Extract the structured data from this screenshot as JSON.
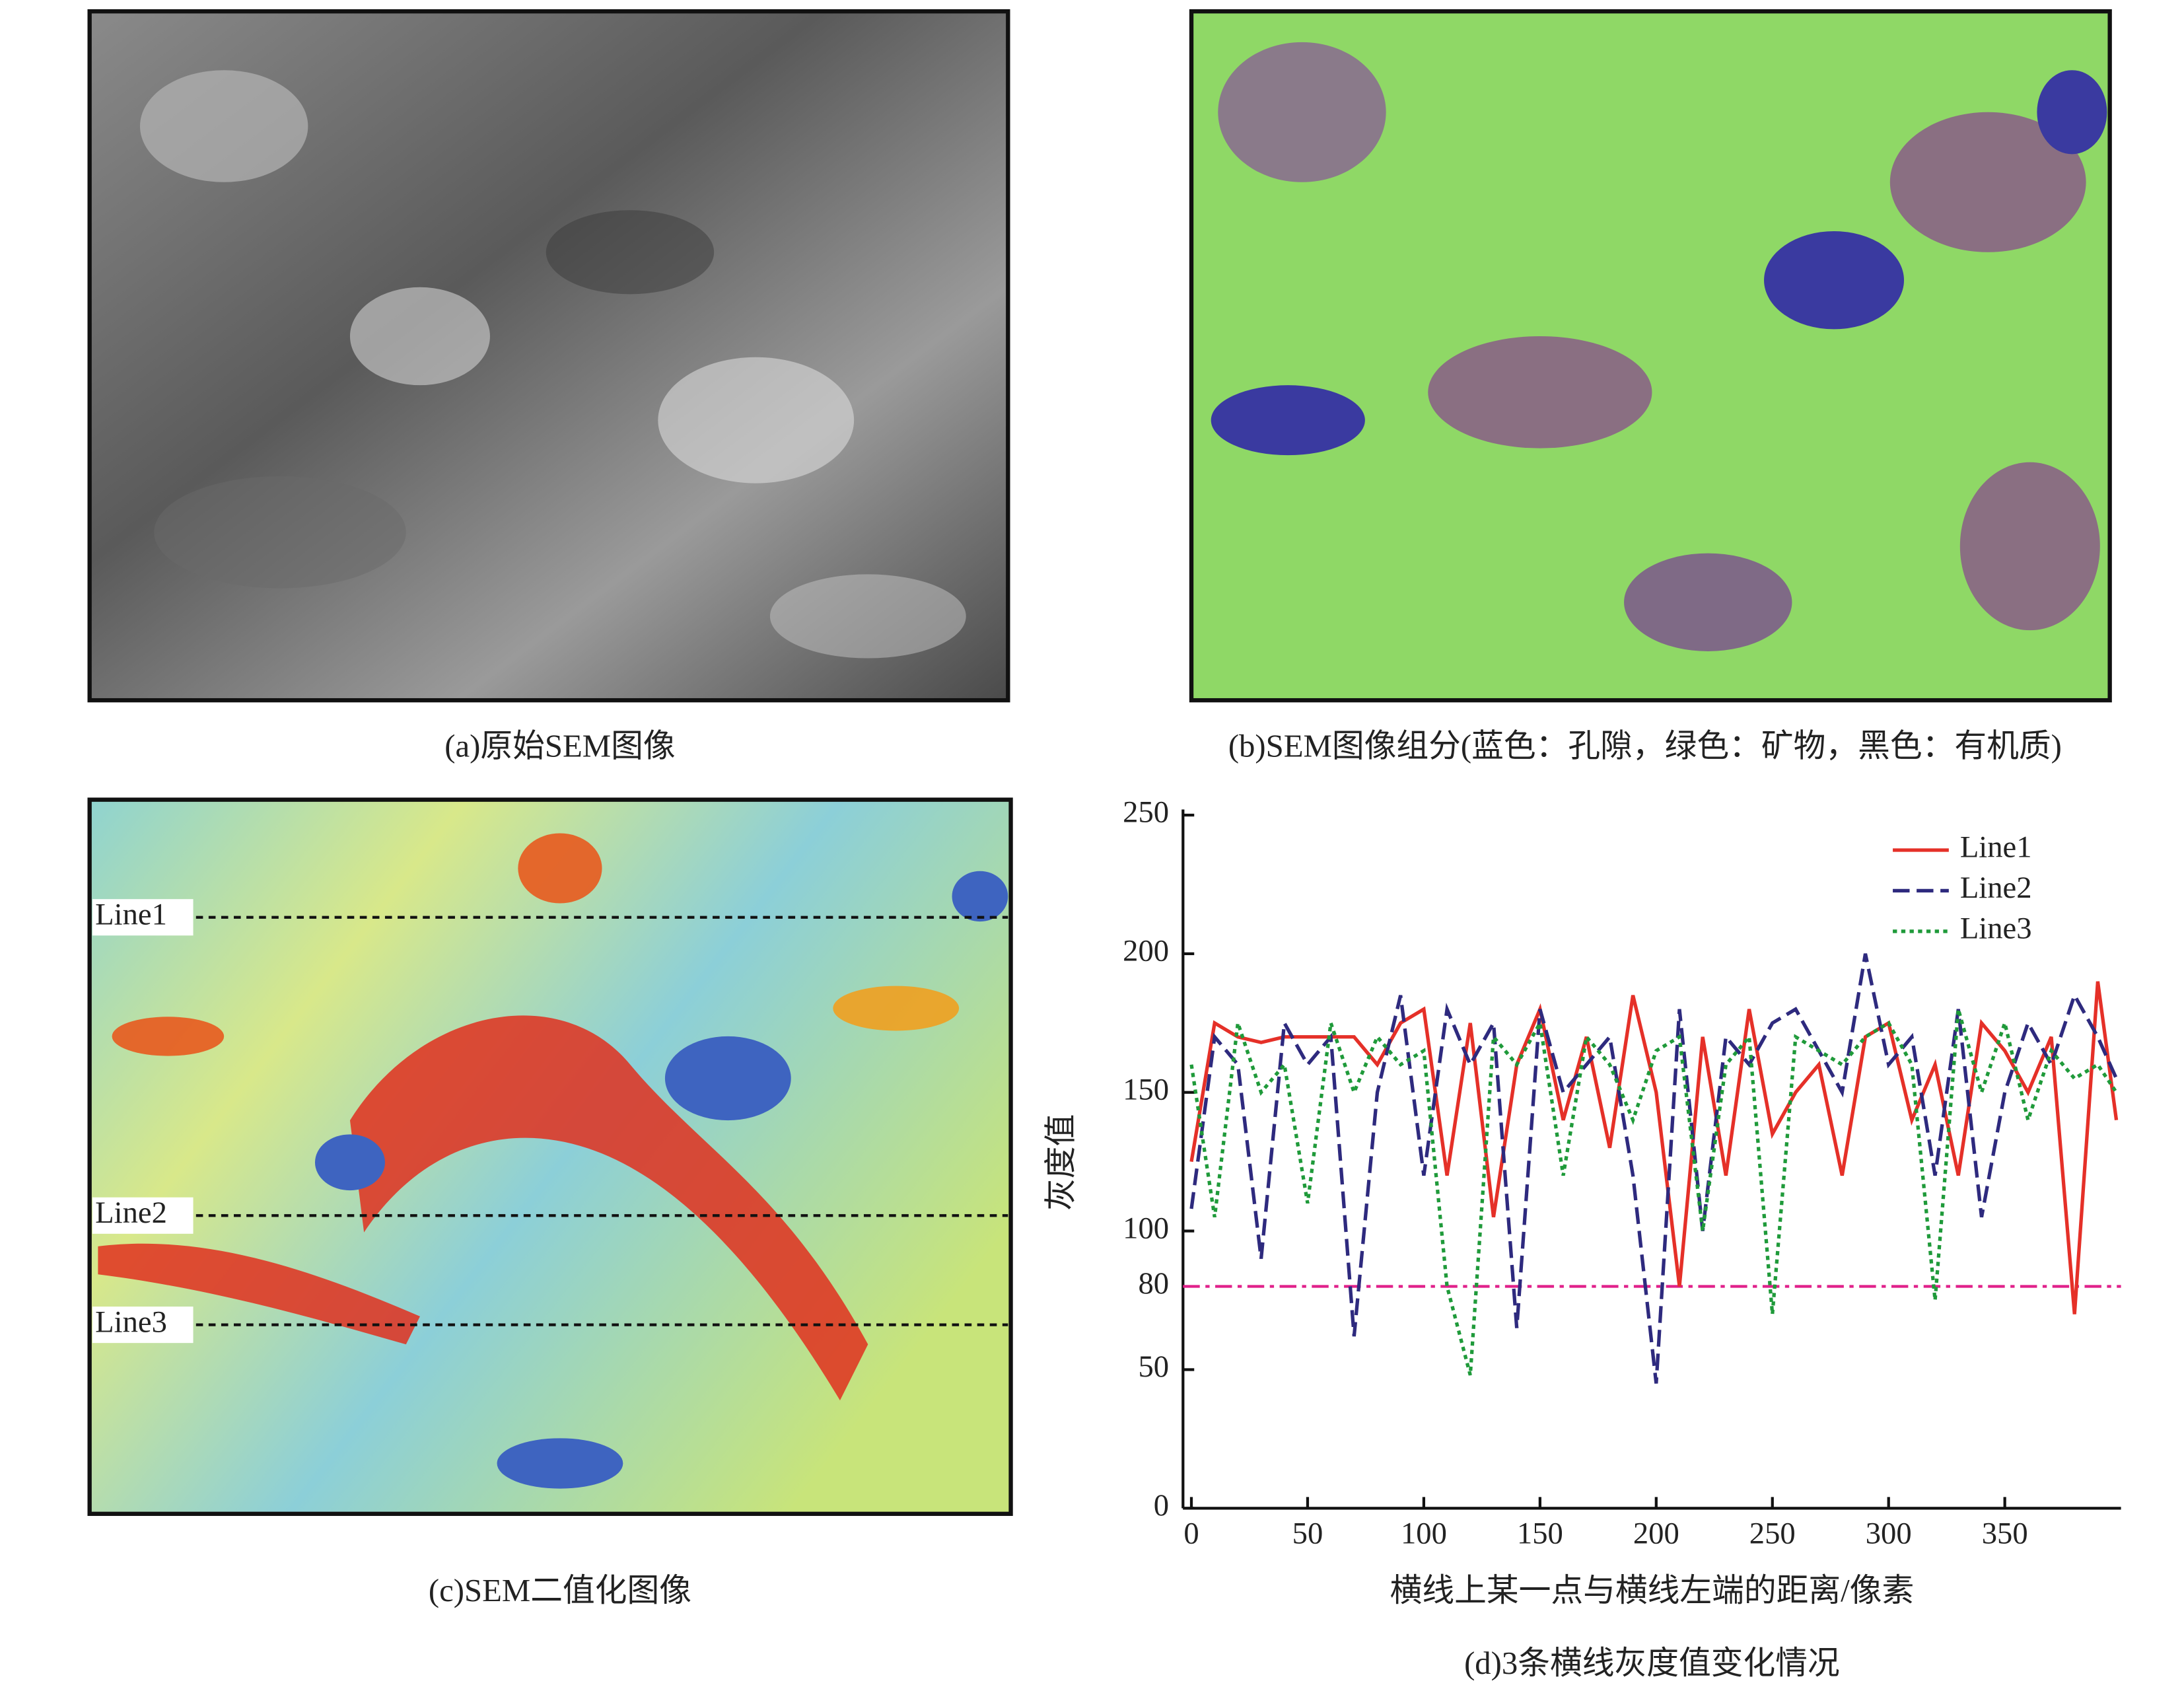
{
  "panels": [
    {
      "caption": "(a)原始SEM图像"
    },
    {
      "caption": "(b)SEM图像组分(蓝色：孔隙，绿色：矿物，黑色：有机质)"
    },
    {
      "caption": "(c)SEM二值化图像",
      "line_labels": [
        "Line1",
        "Line2",
        "Line3"
      ]
    }
  ],
  "chart_data": {
    "type": "line",
    "title": "(d)3条横线灰度值变化情况",
    "x_label": "横线上某一点与横线左端的距离/像素",
    "y_label": "灰度值",
    "x": [
      0,
      10,
      20,
      30,
      40,
      50,
      60,
      70,
      80,
      90,
      100,
      110,
      120,
      130,
      140,
      150,
      160,
      170,
      180,
      190,
      200,
      210,
      220,
      230,
      240,
      250,
      260,
      270,
      280,
      290,
      300,
      310,
      320,
      330,
      340,
      350,
      360,
      370,
      380,
      390,
      398
    ],
    "series": [
      {
        "name": "Line1",
        "color": "#e53028",
        "style": "solid",
        "values": [
          125,
          175,
          170,
          168,
          170,
          170,
          170,
          170,
          160,
          175,
          180,
          120,
          175,
          105,
          160,
          180,
          140,
          170,
          130,
          185,
          150,
          80,
          170,
          120,
          180,
          135,
          150,
          160,
          120,
          170,
          175,
          140,
          160,
          120,
          175,
          165,
          150,
          170,
          70,
          190,
          140
        ]
      },
      {
        "name": "Line2",
        "color": "#2e2a7e",
        "style": "dashed",
        "values": [
          108,
          170,
          160,
          90,
          175,
          160,
          170,
          62,
          150,
          185,
          120,
          180,
          160,
          175,
          65,
          180,
          150,
          160,
          170,
          120,
          45,
          180,
          100,
          170,
          160,
          175,
          180,
          165,
          150,
          200,
          160,
          170,
          120,
          180,
          105,
          150,
          175,
          160,
          185,
          170,
          155
        ]
      },
      {
        "name": "Line3",
        "color": "#1f9a3a",
        "style": "dotted",
        "values": [
          160,
          105,
          175,
          150,
          160,
          110,
          175,
          150,
          170,
          160,
          165,
          80,
          48,
          170,
          160,
          175,
          120,
          170,
          160,
          140,
          165,
          170,
          100,
          160,
          170,
          70,
          170,
          165,
          160,
          170,
          175,
          160,
          75,
          180,
          150,
          175,
          140,
          165,
          155,
          160,
          150
        ]
      }
    ],
    "threshold": {
      "value": 80,
      "color": "#e0208a"
    },
    "xlim": [
      0,
      400
    ],
    "xticks": [
      0,
      50,
      100,
      150,
      200,
      250,
      300,
      350
    ],
    "ylim": [
      0,
      250
    ],
    "yticks": [
      0,
      50,
      100,
      150,
      200,
      250
    ],
    "legend": "upper right"
  }
}
